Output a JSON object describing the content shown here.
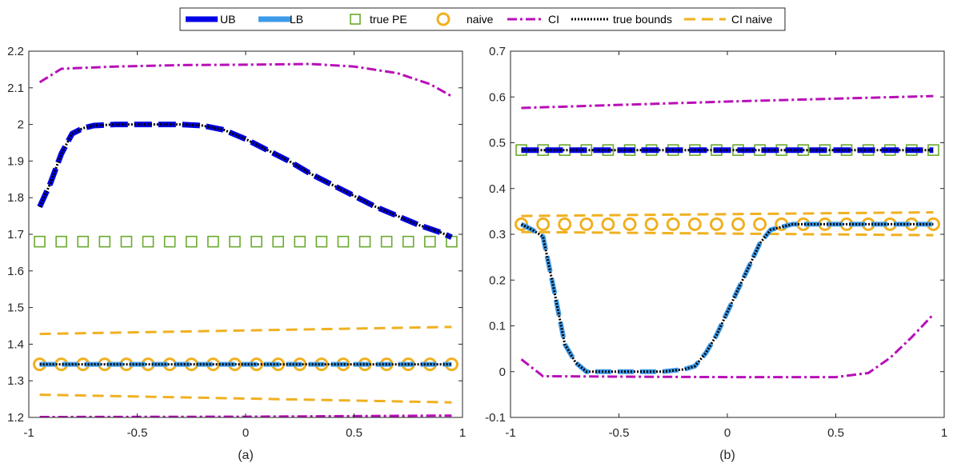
{
  "legend": {
    "entries": [
      {
        "key": "UB",
        "label": "UB",
        "color": "#0000e6",
        "style": "heavy-dash"
      },
      {
        "key": "LB",
        "label": "LB",
        "color": "#3d9be9",
        "style": "heavy-dash"
      },
      {
        "key": "truePE",
        "label": "true PE",
        "color": "#6aaa2e",
        "style": "square"
      },
      {
        "key": "naive",
        "label": "naive",
        "color": "#f0b020",
        "style": "circle"
      },
      {
        "key": "CI",
        "label": "CI",
        "color": "#b80fb8",
        "style": "dashdot"
      },
      {
        "key": "trueBounds",
        "label": "true bounds",
        "color": "#000000",
        "style": "dotted"
      },
      {
        "key": "CInaive",
        "label": "CI naive",
        "color": "#f0b020",
        "style": "dash"
      }
    ]
  },
  "chart_data": [
    {
      "type": "line",
      "caption": "(a)",
      "xlim": [
        -1,
        1
      ],
      "ylim": [
        1.2,
        2.2
      ],
      "xticks": [
        -1,
        -0.5,
        0,
        0.5,
        1
      ],
      "xtick_labels": [
        "-1",
        "-0.5",
        "0",
        "0.5",
        "1"
      ],
      "yticks": [
        1.2,
        1.3,
        1.4,
        1.5,
        1.6,
        1.7,
        1.8,
        1.9,
        2.0,
        2.1,
        2.2
      ],
      "ytick_labels": [
        "1.2",
        "1.3",
        "1.4",
        "1.5",
        "1.6",
        "1.7",
        "1.8",
        "1.9",
        "2",
        "2.1",
        "2.2"
      ],
      "series": {
        "CI": {
          "x": [
            -0.95,
            -0.85,
            -0.6,
            -0.3,
            0.0,
            0.3,
            0.5,
            0.7,
            0.85,
            0.95
          ],
          "y": [
            2.115,
            2.152,
            2.158,
            2.162,
            2.163,
            2.165,
            2.158,
            2.14,
            2.11,
            2.077
          ]
        },
        "UB": {
          "x": [
            -0.95,
            -0.9,
            -0.85,
            -0.8,
            -0.75,
            -0.7,
            -0.6,
            -0.5,
            -0.4,
            -0.3,
            -0.2,
            -0.1,
            0.0,
            0.1,
            0.2,
            0.3,
            0.4,
            0.5,
            0.6,
            0.7,
            0.8,
            0.9,
            0.95
          ],
          "y": [
            1.775,
            1.84,
            1.92,
            1.975,
            1.99,
            1.997,
            2.0,
            2.0,
            2.0,
            2.0,
            1.997,
            1.985,
            1.96,
            1.93,
            1.9,
            1.865,
            1.835,
            1.805,
            1.775,
            1.75,
            1.725,
            1.705,
            1.692
          ]
        },
        "trueBounds": {
          "x": [
            -0.95,
            -0.9,
            -0.85,
            -0.8,
            -0.75,
            -0.7,
            -0.6,
            -0.5,
            -0.4,
            -0.3,
            -0.2,
            -0.1,
            0.0,
            0.1,
            0.2,
            0.3,
            0.4,
            0.5,
            0.6,
            0.7,
            0.8,
            0.9,
            0.95
          ],
          "y": [
            1.775,
            1.84,
            1.92,
            1.975,
            1.99,
            1.997,
            2.0,
            2.0,
            2.0,
            2.0,
            1.997,
            1.985,
            1.96,
            1.93,
            1.9,
            1.865,
            1.835,
            1.805,
            1.775,
            1.75,
            1.725,
            1.705,
            1.692
          ]
        },
        "truePE": {
          "x": [
            -0.95,
            -0.85,
            -0.75,
            -0.65,
            -0.55,
            -0.45,
            -0.35,
            -0.25,
            -0.15,
            -0.05,
            0.05,
            0.15,
            0.25,
            0.35,
            0.45,
            0.55,
            0.65,
            0.75,
            0.85,
            0.95
          ],
          "y": [
            1.68,
            1.68,
            1.68,
            1.68,
            1.68,
            1.68,
            1.68,
            1.68,
            1.68,
            1.68,
            1.68,
            1.68,
            1.68,
            1.68,
            1.68,
            1.68,
            1.68,
            1.68,
            1.68,
            1.68
          ]
        },
        "CInaive_upper": {
          "x": [
            -0.95,
            0.95
          ],
          "y": [
            1.428,
            1.447
          ]
        },
        "CInaive_lower": {
          "x": [
            -0.95,
            0.95
          ],
          "y": [
            1.262,
            1.241
          ]
        },
        "naive": {
          "x": [
            -0.95,
            -0.85,
            -0.75,
            -0.65,
            -0.55,
            -0.45,
            -0.35,
            -0.25,
            -0.15,
            -0.05,
            0.05,
            0.15,
            0.25,
            0.35,
            0.45,
            0.55,
            0.65,
            0.75,
            0.85,
            0.95
          ],
          "y": [
            1.345,
            1.345,
            1.345,
            1.345,
            1.345,
            1.345,
            1.345,
            1.345,
            1.345,
            1.345,
            1.345,
            1.345,
            1.345,
            1.345,
            1.345,
            1.345,
            1.345,
            1.345,
            1.345,
            1.345
          ]
        },
        "LB": {
          "x": [
            -0.95,
            0.95
          ],
          "y": [
            1.345,
            1.345
          ]
        },
        "trueBoundsLower": {
          "x": [
            -0.95,
            0.95
          ],
          "y": [
            1.345,
            1.345
          ]
        },
        "CI_lower": {
          "x": [
            -0.95,
            0.0,
            0.95
          ],
          "y": [
            1.201,
            1.202,
            1.205
          ]
        }
      }
    },
    {
      "type": "line",
      "caption": "(b)",
      "xlim": [
        -1,
        1
      ],
      "ylim": [
        -0.1,
        0.7
      ],
      "xticks": [
        -1,
        -0.5,
        0,
        0.5,
        1
      ],
      "xtick_labels": [
        "-1",
        "-0.5",
        "0",
        "0.5",
        "1"
      ],
      "yticks": [
        -0.1,
        0.0,
        0.1,
        0.2,
        0.3,
        0.4,
        0.5,
        0.6,
        0.7
      ],
      "ytick_labels": [
        "-0.1",
        "0",
        "0.1",
        "0.2",
        "0.3",
        "0.4",
        "0.5",
        "0.6",
        "0.7"
      ],
      "series": {
        "CI": {
          "x": [
            -0.95,
            0.0,
            0.95
          ],
          "y": [
            0.576,
            0.59,
            0.602
          ]
        },
        "UB": {
          "x": [
            -0.95,
            0.95
          ],
          "y": [
            0.484,
            0.484
          ]
        },
        "trueBounds": {
          "x": [
            -0.95,
            0.95
          ],
          "y": [
            0.484,
            0.484
          ]
        },
        "truePE": {
          "x": [
            -0.95,
            -0.85,
            -0.75,
            -0.65,
            -0.55,
            -0.45,
            -0.35,
            -0.25,
            -0.15,
            -0.05,
            0.05,
            0.15,
            0.25,
            0.35,
            0.45,
            0.55,
            0.65,
            0.75,
            0.85,
            0.95
          ],
          "y": [
            0.484,
            0.484,
            0.484,
            0.484,
            0.484,
            0.484,
            0.484,
            0.484,
            0.484,
            0.484,
            0.484,
            0.484,
            0.484,
            0.484,
            0.484,
            0.484,
            0.484,
            0.484,
            0.484,
            0.484
          ]
        },
        "CInaive_upper": {
          "x": [
            -0.95,
            0.95
          ],
          "y": [
            0.34,
            0.348
          ]
        },
        "CInaive_lower": {
          "x": [
            -0.95,
            0.95
          ],
          "y": [
            0.305,
            0.298
          ]
        },
        "naive": {
          "x": [
            -0.95,
            -0.85,
            -0.75,
            -0.65,
            -0.55,
            -0.45,
            -0.35,
            -0.25,
            -0.15,
            -0.05,
            0.05,
            0.15,
            0.25,
            0.35,
            0.45,
            0.55,
            0.65,
            0.75,
            0.85,
            0.95
          ],
          "y": [
            0.322,
            0.322,
            0.322,
            0.322,
            0.322,
            0.322,
            0.322,
            0.322,
            0.322,
            0.322,
            0.322,
            0.322,
            0.322,
            0.322,
            0.322,
            0.322,
            0.322,
            0.322,
            0.322,
            0.322
          ]
        },
        "LB": {
          "x": [
            -0.95,
            -0.9,
            -0.85,
            -0.8,
            -0.75,
            -0.7,
            -0.65,
            -0.6,
            -0.5,
            -0.4,
            -0.3,
            -0.2,
            -0.15,
            -0.1,
            -0.05,
            0.0,
            0.05,
            0.1,
            0.15,
            0.2,
            0.3,
            0.4,
            0.5,
            0.6,
            0.7,
            0.8,
            0.9,
            0.95
          ],
          "y": [
            0.322,
            0.31,
            0.295,
            0.18,
            0.06,
            0.02,
            0.0,
            0.0,
            0.0,
            0.0,
            0.0,
            0.005,
            0.012,
            0.04,
            0.08,
            0.13,
            0.18,
            0.23,
            0.28,
            0.31,
            0.322,
            0.322,
            0.322,
            0.322,
            0.322,
            0.322,
            0.322,
            0.322
          ]
        },
        "trueBoundsLower": {
          "x": [
            -0.95,
            -0.9,
            -0.85,
            -0.8,
            -0.75,
            -0.7,
            -0.65,
            -0.6,
            -0.5,
            -0.4,
            -0.3,
            -0.2,
            -0.15,
            -0.1,
            -0.05,
            0.0,
            0.05,
            0.1,
            0.15,
            0.2,
            0.3,
            0.4,
            0.5,
            0.6,
            0.7,
            0.8,
            0.9,
            0.95
          ],
          "y": [
            0.322,
            0.31,
            0.295,
            0.18,
            0.06,
            0.02,
            0.0,
            0.0,
            0.0,
            0.0,
            0.0,
            0.005,
            0.012,
            0.04,
            0.08,
            0.13,
            0.18,
            0.23,
            0.28,
            0.31,
            0.322,
            0.322,
            0.322,
            0.322,
            0.322,
            0.322,
            0.322,
            0.322
          ]
        },
        "CI_lower": {
          "x": [
            -0.95,
            -0.85,
            -0.5,
            0.0,
            0.5,
            0.65,
            0.75,
            0.85,
            0.95
          ],
          "y": [
            0.027,
            -0.01,
            -0.011,
            -0.012,
            -0.012,
            -0.003,
            0.03,
            0.075,
            0.125
          ]
        }
      }
    }
  ]
}
